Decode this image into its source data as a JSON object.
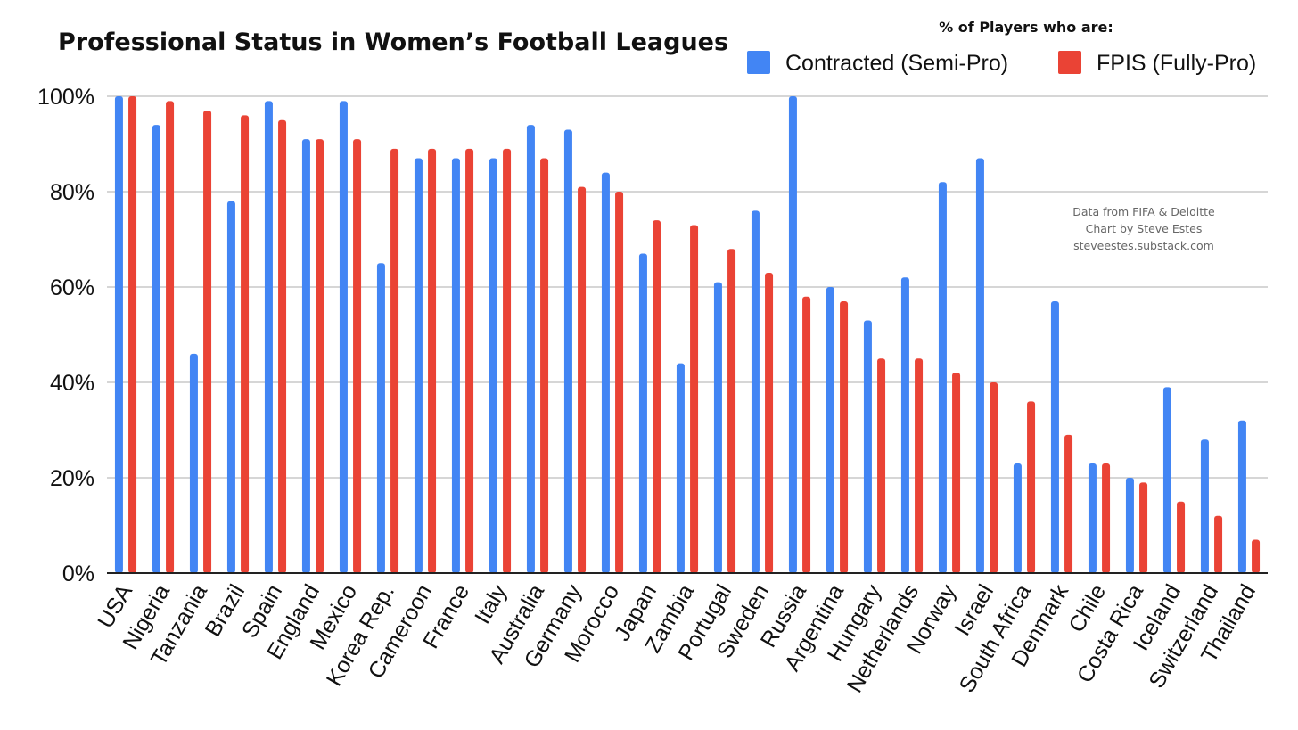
{
  "chart_data": {
    "type": "bar",
    "title": "Professional Status in Women’s Football Leagues",
    "legend_title": "% of Players who are:",
    "legend_position": "top-right",
    "xlabel": "",
    "ylabel": "",
    "ylim": [
      0,
      100
    ],
    "y_ticks": [
      "0%",
      "20%",
      "40%",
      "60%",
      "80%",
      "100%"
    ],
    "grid": true,
    "categories": [
      "USA",
      "Nigeria",
      "Tanzania",
      "Brazil",
      "Spain",
      "England",
      "Mexico",
      "Korea Rep.",
      "Cameroon",
      "France",
      "Italy",
      "Australia",
      "Germany",
      "Morocco",
      "Japan",
      "Zambia",
      "Portugal",
      "Sweden",
      "Russia",
      "Argentina",
      "Hungary",
      "Netherlands",
      "Norway",
      "Israel",
      "South Africa",
      "Denmark",
      "Chile",
      "Costa Rica",
      "Iceland",
      "Switzerland",
      "Thailand"
    ],
    "series": [
      {
        "name": "Contracted (Semi-Pro)",
        "color": "#4285f4",
        "values": [
          100,
          94,
          46,
          78,
          99,
          91,
          99,
          65,
          87,
          87,
          87,
          94,
          93,
          84,
          67,
          44,
          61,
          76,
          100,
          60,
          53,
          62,
          82,
          87,
          23,
          57,
          23,
          20,
          39,
          28,
          32
        ]
      },
      {
        "name": "FPIS (Fully-Pro)",
        "color": "#ea4335",
        "values": [
          100,
          99,
          97,
          96,
          95,
          91,
          91,
          89,
          89,
          89,
          89,
          87,
          81,
          80,
          74,
          73,
          68,
          63,
          58,
          57,
          45,
          45,
          42,
          40,
          36,
          29,
          23,
          19,
          15,
          12,
          7
        ]
      }
    ],
    "annotations": [
      "Data from FIFA & Deloitte",
      "Chart by Steve Estes",
      "steveestes.substack.com"
    ]
  }
}
